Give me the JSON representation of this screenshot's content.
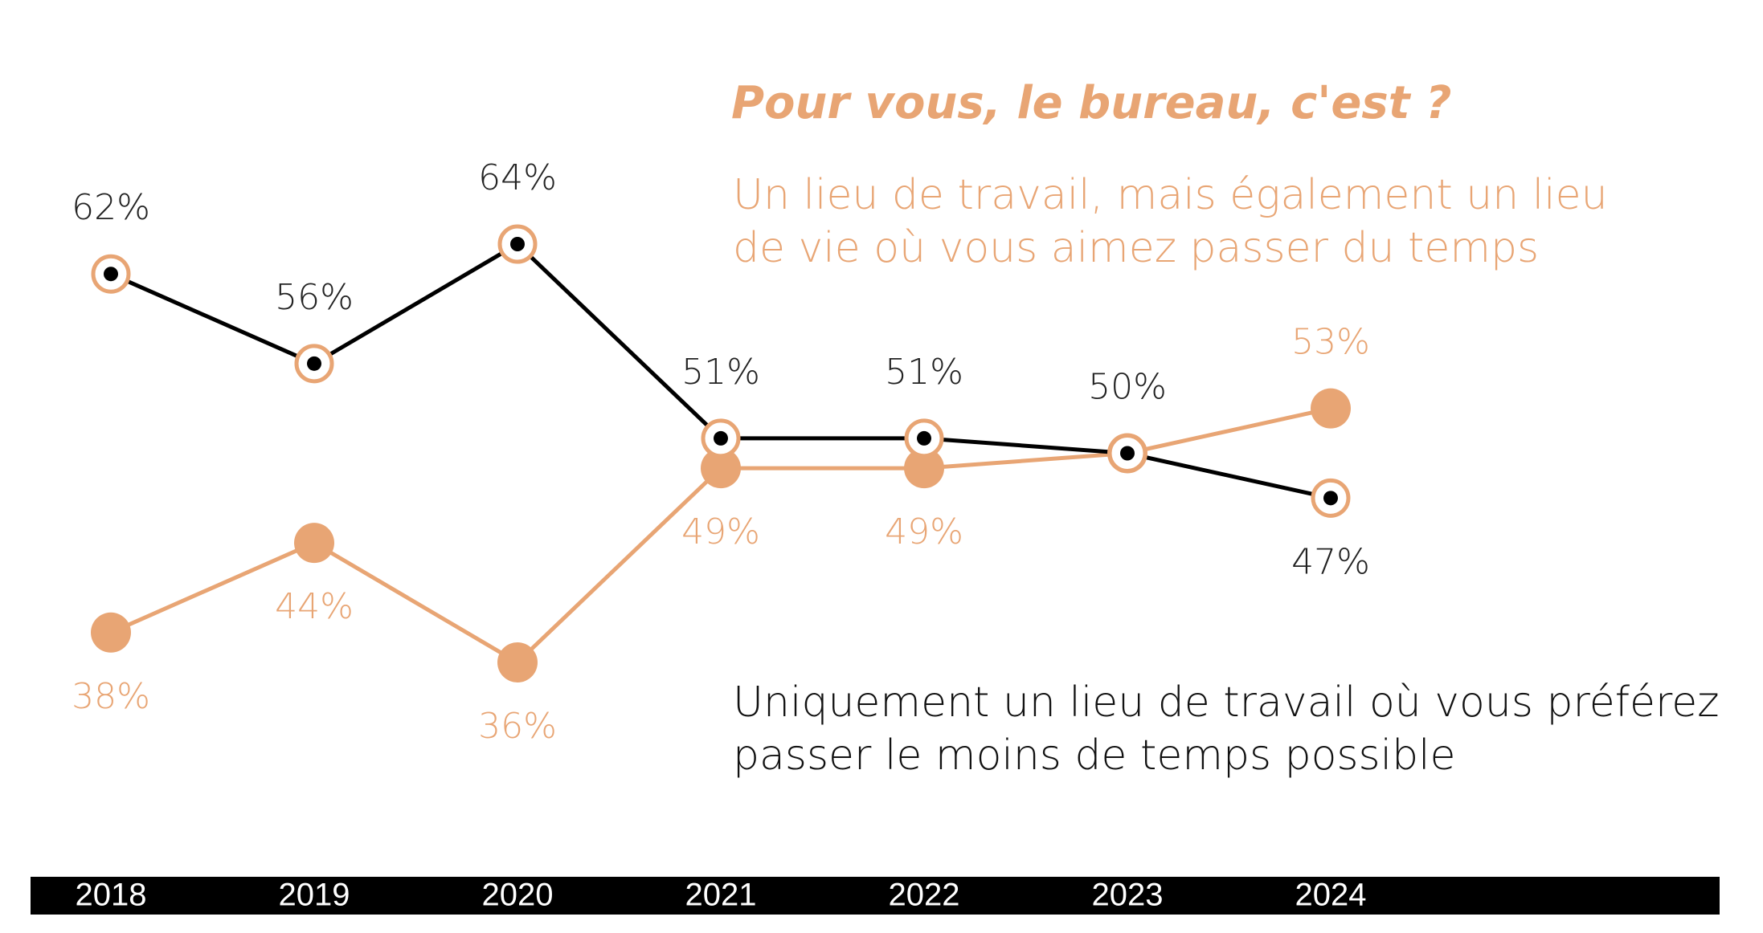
{
  "chart_data": {
    "type": "line",
    "title": "Pour vous, le bureau, c'est ?",
    "categories": [
      "2018",
      "2019",
      "2020",
      "2021",
      "2022",
      "2023",
      "2024"
    ],
    "series": [
      {
        "name": "Un lieu de travail, mais également un lieu de vie où vous aimez passer du temps",
        "color": "#e8a574",
        "values": [
          38,
          44,
          36,
          49,
          49,
          50,
          53
        ],
        "value_labels": [
          "38%",
          "44%",
          "36%",
          "49%",
          "49%",
          null,
          "53%"
        ]
      },
      {
        "name": "Uniquement un lieu de travail où vous préférez passer le moins de temps possible",
        "color": "#000000",
        "values": [
          62,
          56,
          64,
          51,
          51,
          50,
          47
        ],
        "value_labels": [
          "62%",
          "56%",
          "64%",
          "51%",
          "51%",
          "50%",
          "47%"
        ]
      }
    ]
  }
}
